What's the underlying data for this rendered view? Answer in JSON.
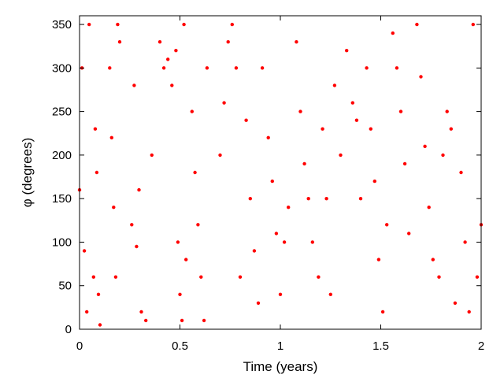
{
  "chart_data": {
    "type": "scatter",
    "title": "",
    "xlabel": "Time (years)",
    "ylabel": "φ (degrees)",
    "xlim": [
      0,
      2
    ],
    "ylim": [
      0,
      360
    ],
    "x_ticks": [
      0,
      0.5,
      1,
      1.5,
      2
    ],
    "x_tick_labels": [
      "0",
      "0.5",
      "1",
      "1.5",
      "2"
    ],
    "y_ticks": [
      0,
      50,
      100,
      150,
      200,
      250,
      300,
      350
    ],
    "y_tick_labels": [
      "0",
      "50",
      "100",
      "150",
      "200",
      "250",
      "300",
      "350"
    ],
    "grid": false,
    "legend": "none",
    "marker_color": "#ff0000",
    "series": [
      {
        "x": [
          0.0,
          0.012,
          0.024,
          0.036,
          0.048,
          0.07,
          0.078,
          0.086,
          0.094,
          0.102,
          0.15,
          0.16,
          0.17,
          0.18,
          0.19,
          0.2,
          0.26,
          0.272,
          0.284,
          0.296,
          0.308,
          0.33,
          0.36,
          0.4,
          0.42,
          0.44,
          0.46,
          0.48,
          0.49,
          0.5,
          0.51,
          0.52,
          0.53,
          0.56,
          0.575,
          0.59,
          0.605,
          0.62,
          0.635,
          0.7,
          0.72,
          0.74,
          0.76,
          0.78,
          0.8,
          0.83,
          0.85,
          0.87,
          0.89,
          0.91,
          0.94,
          0.96,
          0.98,
          1.0,
          1.02,
          1.04,
          1.08,
          1.1,
          1.12,
          1.14,
          1.16,
          1.19,
          1.21,
          1.23,
          1.25,
          1.27,
          1.3,
          1.33,
          1.36,
          1.38,
          1.4,
          1.43,
          1.45,
          1.47,
          1.49,
          1.51,
          1.53,
          1.56,
          1.58,
          1.6,
          1.62,
          1.64,
          1.68,
          1.7,
          1.72,
          1.74,
          1.76,
          1.79,
          1.81,
          1.83,
          1.85,
          1.87,
          1.9,
          1.92,
          1.94,
          1.96,
          1.98,
          2.0
        ],
        "y": [
          160,
          300,
          90,
          20,
          350,
          60,
          230,
          180,
          40,
          5,
          300,
          220,
          140,
          60,
          350,
          330,
          120,
          280,
          95,
          160,
          20,
          10,
          200,
          330,
          300,
          310,
          280,
          320,
          100,
          40,
          10,
          350,
          80,
          250,
          180,
          120,
          60,
          10,
          300,
          200,
          260,
          330,
          350,
          300,
          60,
          240,
          150,
          90,
          30,
          300,
          220,
          170,
          110,
          40,
          100,
          140,
          330,
          250,
          190,
          150,
          100,
          60,
          230,
          150,
          40,
          280,
          200,
          320,
          260,
          240,
          150,
          300,
          230,
          170,
          80,
          20,
          120,
          340,
          300,
          250,
          190,
          110,
          350,
          290,
          210,
          140,
          80,
          60,
          200,
          250,
          230,
          30,
          180,
          100,
          20,
          350,
          60,
          120
        ]
      }
    ]
  }
}
